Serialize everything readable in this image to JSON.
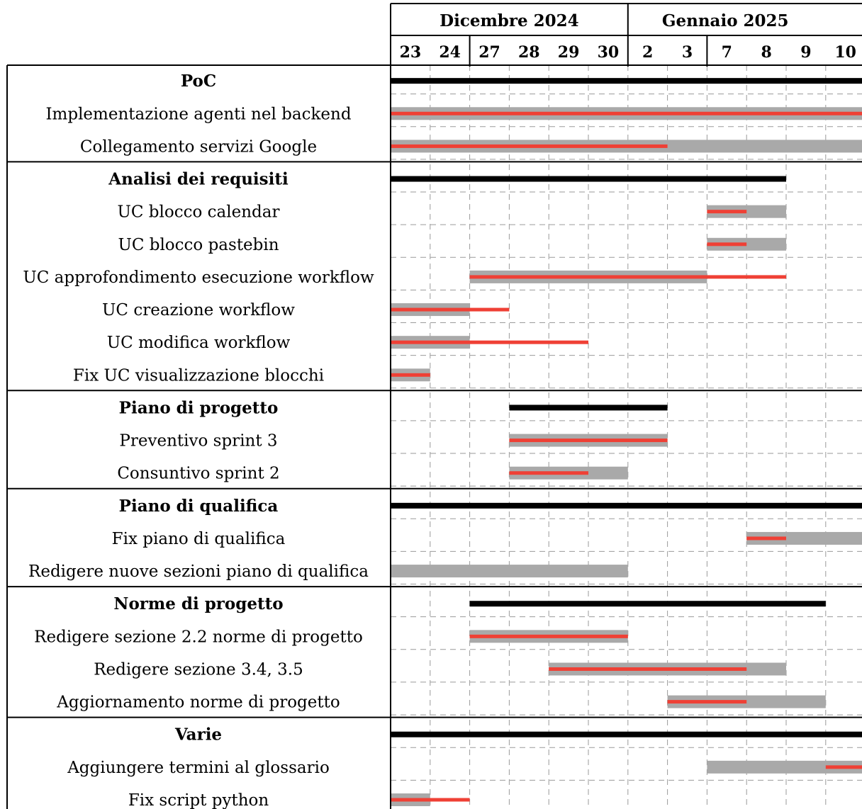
{
  "chart_data": {
    "type": "gantt",
    "months": [
      {
        "label": "Dicembre 2024",
        "days": [
          "23",
          "24",
          "27",
          "28",
          "29",
          "30"
        ]
      },
      {
        "label": "Gennaio 2025",
        "days": [
          "2",
          "3",
          "7",
          "8",
          "9",
          "10"
        ]
      }
    ],
    "day_labels": [
      "23",
      "24",
      "27",
      "28",
      "29",
      "30",
      "2",
      "3",
      "7",
      "8",
      "9",
      "10"
    ],
    "groups": [
      {
        "name": "PoC",
        "span": [
          "23",
          "10"
        ],
        "tasks": [
          {
            "name": "Implementazione agenti nel backend",
            "planned": [
              "23",
              "10"
            ],
            "actual": [
              "23",
              "10"
            ]
          },
          {
            "name": "Collegamento servizi Google",
            "planned": [
              "23",
              "10"
            ],
            "actual": [
              "23",
              "2"
            ]
          }
        ]
      },
      {
        "name": "Analisi dei requisiti",
        "span": [
          "23",
          "8"
        ],
        "tasks": [
          {
            "name": "UC blocco calendar",
            "planned": [
              "7",
              "8"
            ],
            "actual": [
              "7",
              "7"
            ]
          },
          {
            "name": "UC blocco pastebin",
            "planned": [
              "7",
              "8"
            ],
            "actual": [
              "7",
              "7"
            ]
          },
          {
            "name": "UC approfondimento esecuzione workflow",
            "planned": [
              "27",
              "3"
            ],
            "actual": [
              "27",
              "8"
            ]
          },
          {
            "name": "UC creazione workflow",
            "planned": [
              "23",
              "24"
            ],
            "actual": [
              "23",
              "27"
            ]
          },
          {
            "name": "UC modifica workflow",
            "planned": [
              "23",
              "24"
            ],
            "actual": [
              "23",
              "29"
            ]
          },
          {
            "name": "Fix UC visualizzazione blocchi",
            "planned": [
              "23",
              "23"
            ],
            "actual": [
              "23",
              "23"
            ]
          }
        ]
      },
      {
        "name": "Piano di progetto",
        "span": [
          "28",
          "2"
        ],
        "tasks": [
          {
            "name": "Preventivo sprint 3",
            "planned": [
              "28",
              "2"
            ],
            "actual": [
              "28",
              "2"
            ]
          },
          {
            "name": "Consuntivo sprint 2",
            "planned": [
              "28",
              "30"
            ],
            "actual": [
              "28",
              "29"
            ]
          }
        ]
      },
      {
        "name": "Piano di qualifica",
        "span": [
          "23",
          "10"
        ],
        "tasks": [
          {
            "name": "Fix piano di qualifica",
            "planned": [
              "8",
              "10"
            ],
            "actual": [
              "8",
              "8"
            ]
          },
          {
            "name": "Redigere nuove sezioni piano di qualifica",
            "planned": [
              "23",
              "30"
            ],
            "actual": null
          }
        ]
      },
      {
        "name": "Norme di progetto",
        "span": [
          "27",
          "9"
        ],
        "tasks": [
          {
            "name": "Redigere sezione 2.2 norme di progetto",
            "planned": [
              "27",
              "30"
            ],
            "actual": [
              "27",
              "30"
            ]
          },
          {
            "name": "Redigere sezione 3.4, 3.5",
            "planned": [
              "29",
              "8"
            ],
            "actual": [
              "29",
              "7"
            ]
          },
          {
            "name": "Aggiornamento norme di progetto",
            "planned": [
              "3",
              "9"
            ],
            "actual": [
              "3",
              "7"
            ]
          }
        ]
      },
      {
        "name": "Varie",
        "span": [
          "23",
          "10"
        ],
        "tasks": [
          {
            "name": "Aggiungere termini al glossario",
            "planned": [
              "7",
              "10"
            ],
            "actual": [
              "10",
              "10"
            ]
          },
          {
            "name": "Fix script python",
            "planned": [
              "23",
              "23"
            ],
            "actual": [
              "23",
              "24"
            ]
          }
        ]
      }
    ],
    "colors": {
      "group_bar": "#000000",
      "planned": "#a9a9a9",
      "actual": "#ef4035",
      "grid": "#9a9a9a"
    }
  }
}
